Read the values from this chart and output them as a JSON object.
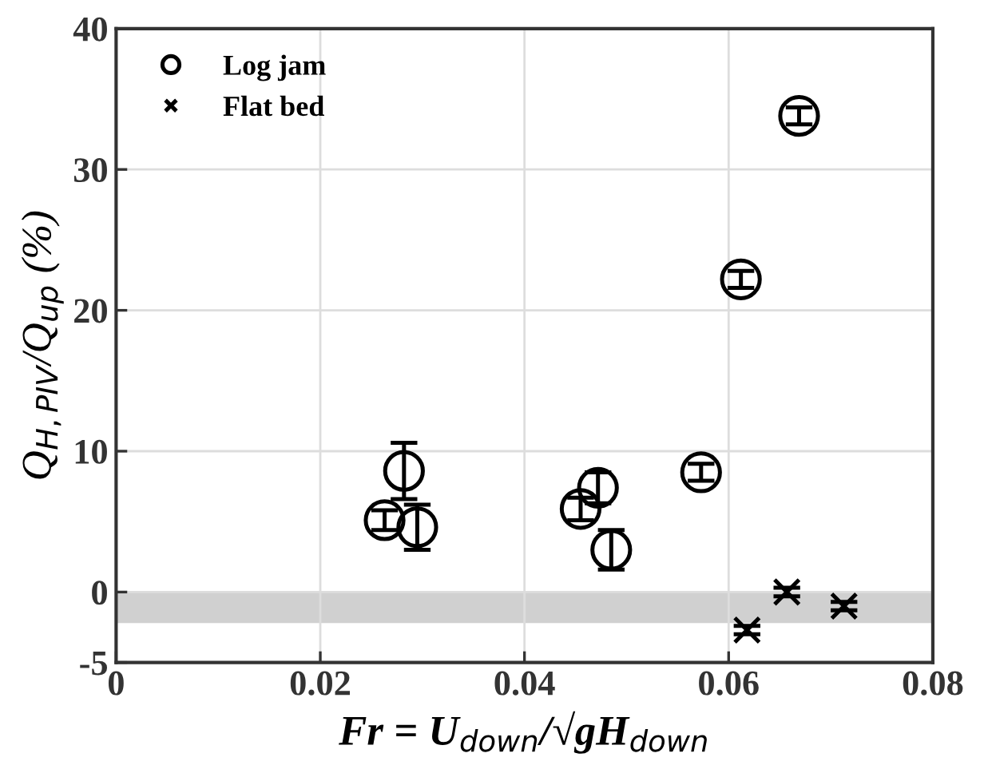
{
  "chart_data": {
    "type": "scatter",
    "xlabel": "Fr = U$_{down}$/√gH$_{down}$",
    "ylabel": "Q$_{H,PIV}$/Q$_{up}$ (%)",
    "xlim": [
      0,
      0.08
    ],
    "xticks": [
      0,
      0.02,
      0.04,
      0.06,
      0.08
    ],
    "ylim": [
      -5,
      40
    ],
    "yticks": [
      -5,
      0,
      10,
      20,
      30,
      40
    ],
    "grid": true,
    "legend": "top left",
    "bands": [
      {
        "axis": "y",
        "from": -2.2,
        "to": 0,
        "color": "#d0d0d0"
      }
    ],
    "series": [
      {
        "name": "Log jam",
        "color": "#000000",
        "marker": "circle",
        "x": [
          0.0263,
          0.0282,
          0.0295,
          0.0455,
          0.0472,
          0.0485,
          0.0573,
          0.0612,
          0.0669
        ],
        "values": [
          5.1,
          8.6,
          4.6,
          5.9,
          7.4,
          3.0,
          8.5,
          22.2,
          33.8
        ],
        "errors": [
          0.7,
          2.0,
          1.6,
          0.8,
          1.1,
          1.4,
          0.6,
          0.6,
          0.6
        ]
      },
      {
        "name": "Flat bed",
        "color": "#000000",
        "marker": "cross",
        "x": [
          0.0618,
          0.0657,
          0.0713
        ],
        "values": [
          -2.7,
          0.0,
          -1.0
        ],
        "errors": [
          0.3,
          0.3,
          0.3
        ]
      }
    ]
  }
}
